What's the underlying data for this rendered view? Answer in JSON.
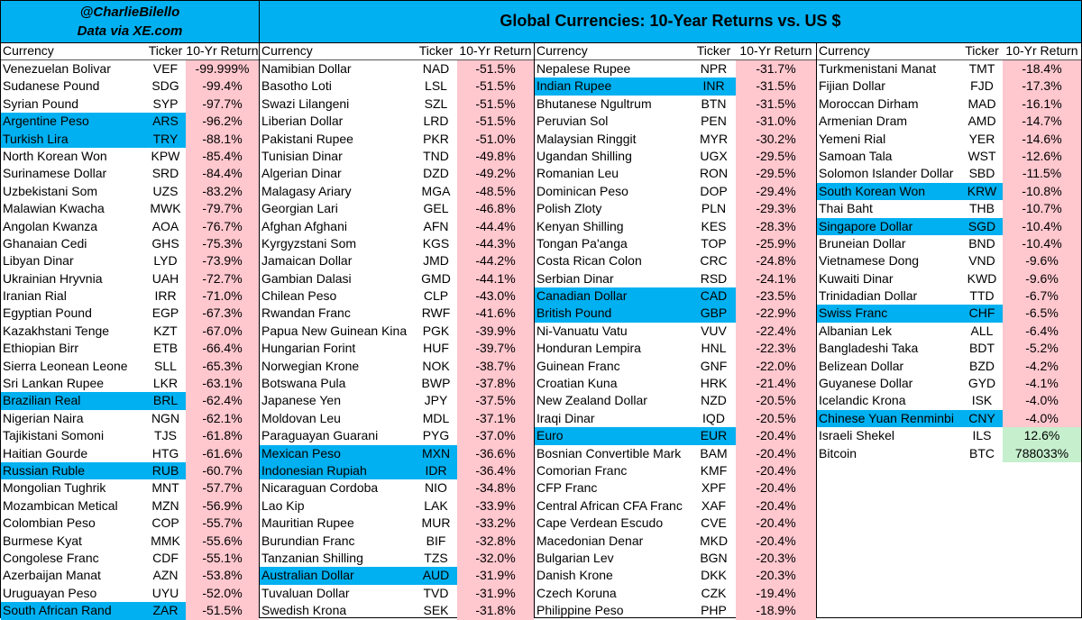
{
  "header": {
    "handle": "@CharlieBilello",
    "source": "Data via XE.com",
    "title": "Global Currencies: 10-Year Returns vs. US $"
  },
  "columns_header": {
    "currency": "Currency",
    "ticker": "Ticker",
    "return": "10-Yr Return"
  },
  "colors": {
    "highlight": "#00B0F0",
    "negative_fill": "#FFC7CE",
    "positive_fill": "#C6EFCE"
  },
  "col1": [
    {
      "name": "Venezuelan Bolivar",
      "ticker": "VEF",
      "ret": "-99.999%"
    },
    {
      "name": "Sudanese Pound",
      "ticker": "SDG",
      "ret": "-99.4%"
    },
    {
      "name": "Syrian Pound",
      "ticker": "SYP",
      "ret": "-97.7%"
    },
    {
      "name": "Argentine Peso",
      "ticker": "ARS",
      "ret": "-96.2%",
      "hl": true
    },
    {
      "name": "Turkish Lira",
      "ticker": "TRY",
      "ret": "-88.1%",
      "hl": true
    },
    {
      "name": "North Korean Won",
      "ticker": "KPW",
      "ret": "-85.4%"
    },
    {
      "name": "Surinamese Dollar",
      "ticker": "SRD",
      "ret": "-84.4%"
    },
    {
      "name": "Uzbekistani Som",
      "ticker": "UZS",
      "ret": "-83.2%"
    },
    {
      "name": "Malawian Kwacha",
      "ticker": "MWK",
      "ret": "-79.7%"
    },
    {
      "name": "Angolan Kwanza",
      "ticker": "AOA",
      "ret": "-76.7%"
    },
    {
      "name": "Ghanaian Cedi",
      "ticker": "GHS",
      "ret": "-75.3%"
    },
    {
      "name": "Libyan Dinar",
      "ticker": "LYD",
      "ret": "-73.9%"
    },
    {
      "name": "Ukrainian Hryvnia",
      "ticker": "UAH",
      "ret": "-72.7%"
    },
    {
      "name": "Iranian Rial",
      "ticker": "IRR",
      "ret": "-71.0%"
    },
    {
      "name": "Egyptian Pound",
      "ticker": "EGP",
      "ret": "-67.3%"
    },
    {
      "name": "Kazakhstani Tenge",
      "ticker": "KZT",
      "ret": "-67.0%"
    },
    {
      "name": "Ethiopian Birr",
      "ticker": "ETB",
      "ret": "-66.4%"
    },
    {
      "name": "Sierra Leonean Leone",
      "ticker": "SLL",
      "ret": "-65.3%"
    },
    {
      "name": "Sri Lankan Rupee",
      "ticker": "LKR",
      "ret": "-63.1%"
    },
    {
      "name": "Brazilian Real",
      "ticker": "BRL",
      "ret": "-62.4%",
      "hl": true
    },
    {
      "name": "Nigerian Naira",
      "ticker": "NGN",
      "ret": "-62.1%"
    },
    {
      "name": "Tajikistani Somoni",
      "ticker": "TJS",
      "ret": "-61.8%"
    },
    {
      "name": "Haitian Gourde",
      "ticker": "HTG",
      "ret": "-61.6%"
    },
    {
      "name": "Russian Ruble",
      "ticker": "RUB",
      "ret": "-60.7%",
      "hl": true
    },
    {
      "name": "Mongolian Tughrik",
      "ticker": "MNT",
      "ret": "-57.7%"
    },
    {
      "name": "Mozambican Metical",
      "ticker": "MZN",
      "ret": "-56.9%"
    },
    {
      "name": "Colombian Peso",
      "ticker": "COP",
      "ret": "-55.7%"
    },
    {
      "name": "Burmese Kyat",
      "ticker": "MMK",
      "ret": "-55.6%"
    },
    {
      "name": "Congolese Franc",
      "ticker": "CDF",
      "ret": "-55.1%"
    },
    {
      "name": "Azerbaijan Manat",
      "ticker": "AZN",
      "ret": "-53.8%"
    },
    {
      "name": "Uruguayan Peso",
      "ticker": "UYU",
      "ret": "-52.0%"
    },
    {
      "name": "South African Rand",
      "ticker": "ZAR",
      "ret": "-51.5%",
      "hl": true
    }
  ],
  "col2": [
    {
      "name": "Namibian Dollar",
      "ticker": "NAD",
      "ret": "-51.5%"
    },
    {
      "name": "Basotho Loti",
      "ticker": "LSL",
      "ret": "-51.5%"
    },
    {
      "name": "Swazi Lilangeni",
      "ticker": "SZL",
      "ret": "-51.5%"
    },
    {
      "name": "Liberian Dollar",
      "ticker": "LRD",
      "ret": "-51.5%"
    },
    {
      "name": "Pakistani Rupee",
      "ticker": "PKR",
      "ret": "-51.0%"
    },
    {
      "name": "Tunisian Dinar",
      "ticker": "TND",
      "ret": "-49.8%"
    },
    {
      "name": "Algerian Dinar",
      "ticker": "DZD",
      "ret": "-49.2%"
    },
    {
      "name": "Malagasy Ariary",
      "ticker": "MGA",
      "ret": "-48.5%"
    },
    {
      "name": "Georgian Lari",
      "ticker": "GEL",
      "ret": "-46.8%"
    },
    {
      "name": "Afghan Afghani",
      "ticker": "AFN",
      "ret": "-44.4%"
    },
    {
      "name": "Kyrgyzstani Som",
      "ticker": "KGS",
      "ret": "-44.3%"
    },
    {
      "name": "Jamaican Dollar",
      "ticker": "JMD",
      "ret": "-44.2%"
    },
    {
      "name": "Gambian Dalasi",
      "ticker": "GMD",
      "ret": "-44.1%"
    },
    {
      "name": "Chilean Peso",
      "ticker": "CLP",
      "ret": "-43.0%"
    },
    {
      "name": "Rwandan Franc",
      "ticker": "RWF",
      "ret": "-41.6%"
    },
    {
      "name": "Papua New Guinean Kina",
      "ticker": "PGK",
      "ret": "-39.9%"
    },
    {
      "name": "Hungarian Forint",
      "ticker": "HUF",
      "ret": "-39.7%"
    },
    {
      "name": "Norwegian Krone",
      "ticker": "NOK",
      "ret": "-38.7%"
    },
    {
      "name": "Botswana Pula",
      "ticker": "BWP",
      "ret": "-37.8%"
    },
    {
      "name": "Japanese Yen",
      "ticker": "JPY",
      "ret": "-37.5%"
    },
    {
      "name": "Moldovan Leu",
      "ticker": "MDL",
      "ret": "-37.1%"
    },
    {
      "name": "Paraguayan Guarani",
      "ticker": "PYG",
      "ret": "-37.0%"
    },
    {
      "name": "Mexican Peso",
      "ticker": "MXN",
      "ret": "-36.6%",
      "hl": true
    },
    {
      "name": "Indonesian Rupiah",
      "ticker": "IDR",
      "ret": "-36.4%",
      "hl": true
    },
    {
      "name": "Nicaraguan Cordoba",
      "ticker": "NIO",
      "ret": "-34.8%"
    },
    {
      "name": "Lao Kip",
      "ticker": "LAK",
      "ret": "-33.9%"
    },
    {
      "name": "Mauritian Rupee",
      "ticker": "MUR",
      "ret": "-33.2%"
    },
    {
      "name": "Burundian Franc",
      "ticker": "BIF",
      "ret": "-32.8%"
    },
    {
      "name": "Tanzanian Shilling",
      "ticker": "TZS",
      "ret": "-32.0%"
    },
    {
      "name": "Australian Dollar",
      "ticker": "AUD",
      "ret": "-31.9%",
      "hl": true
    },
    {
      "name": "Tuvaluan Dollar",
      "ticker": "TVD",
      "ret": "-31.9%"
    },
    {
      "name": "Swedish Krona",
      "ticker": "SEK",
      "ret": "-31.8%"
    }
  ],
  "col3": [
    {
      "name": "Nepalese Rupee",
      "ticker": "NPR",
      "ret": "-31.7%"
    },
    {
      "name": "Indian Rupee",
      "ticker": "INR",
      "ret": "-31.5%",
      "hl": true
    },
    {
      "name": "Bhutanese Ngultrum",
      "ticker": "BTN",
      "ret": "-31.5%"
    },
    {
      "name": "Peruvian Sol",
      "ticker": "PEN",
      "ret": "-31.0%"
    },
    {
      "name": "Malaysian Ringgit",
      "ticker": "MYR",
      "ret": "-30.2%"
    },
    {
      "name": "Ugandan Shilling",
      "ticker": "UGX",
      "ret": "-29.5%"
    },
    {
      "name": "Romanian Leu",
      "ticker": "RON",
      "ret": "-29.5%"
    },
    {
      "name": "Dominican Peso",
      "ticker": "DOP",
      "ret": "-29.4%"
    },
    {
      "name": "Polish Zloty",
      "ticker": "PLN",
      "ret": "-29.3%"
    },
    {
      "name": "Kenyan Shilling",
      "ticker": "KES",
      "ret": "-28.3%"
    },
    {
      "name": "Tongan Pa'anga",
      "ticker": "TOP",
      "ret": "-25.9%"
    },
    {
      "name": "Costa Rican Colon",
      "ticker": "CRC",
      "ret": "-24.8%"
    },
    {
      "name": "Serbian Dinar",
      "ticker": "RSD",
      "ret": "-24.1%"
    },
    {
      "name": "Canadian Dollar",
      "ticker": "CAD",
      "ret": "-23.5%",
      "hl": true
    },
    {
      "name": "British Pound",
      "ticker": "GBP",
      "ret": "-22.9%",
      "hl": true
    },
    {
      "name": "Ni-Vanuatu Vatu",
      "ticker": "VUV",
      "ret": "-22.4%"
    },
    {
      "name": "Honduran Lempira",
      "ticker": "HNL",
      "ret": "-22.3%"
    },
    {
      "name": "Guinean Franc",
      "ticker": "GNF",
      "ret": "-22.0%"
    },
    {
      "name": "Croatian Kuna",
      "ticker": "HRK",
      "ret": "-21.4%"
    },
    {
      "name": "New Zealand Dollar",
      "ticker": "NZD",
      "ret": "-20.5%"
    },
    {
      "name": "Iraqi Dinar",
      "ticker": "IQD",
      "ret": "-20.5%"
    },
    {
      "name": "Euro",
      "ticker": "EUR",
      "ret": "-20.4%",
      "hl": true
    },
    {
      "name": "Bosnian Convertible Mark",
      "ticker": "BAM",
      "ret": "-20.4%"
    },
    {
      "name": "Comorian Franc",
      "ticker": "KMF",
      "ret": "-20.4%"
    },
    {
      "name": "CFP Franc",
      "ticker": "XPF",
      "ret": "-20.4%"
    },
    {
      "name": "Central African CFA Franc",
      "ticker": "XAF",
      "ret": "-20.4%"
    },
    {
      "name": "Cape Verdean Escudo",
      "ticker": "CVE",
      "ret": "-20.4%"
    },
    {
      "name": "Macedonian Denar",
      "ticker": "MKD",
      "ret": "-20.4%"
    },
    {
      "name": "Bulgarian Lev",
      "ticker": "BGN",
      "ret": "-20.3%"
    },
    {
      "name": "Danish Krone",
      "ticker": "DKK",
      "ret": "-20.3%"
    },
    {
      "name": "Czech Koruna",
      "ticker": "CZK",
      "ret": "-19.4%"
    },
    {
      "name": "Philippine Peso",
      "ticker": "PHP",
      "ret": "-18.9%"
    }
  ],
  "col4": [
    {
      "name": "Turkmenistani Manat",
      "ticker": "TMT",
      "ret": "-18.4%"
    },
    {
      "name": "Fijian Dollar",
      "ticker": "FJD",
      "ret": "-17.3%"
    },
    {
      "name": "Moroccan Dirham",
      "ticker": "MAD",
      "ret": "-16.1%"
    },
    {
      "name": "Armenian Dram",
      "ticker": "AMD",
      "ret": "-14.7%"
    },
    {
      "name": "Yemeni Rial",
      "ticker": "YER",
      "ret": "-14.6%"
    },
    {
      "name": "Samoan Tala",
      "ticker": "WST",
      "ret": "-12.6%"
    },
    {
      "name": "Solomon Islander Dollar",
      "ticker": "SBD",
      "ret": "-11.5%"
    },
    {
      "name": "South Korean Won",
      "ticker": "KRW",
      "ret": "-10.8%",
      "hl": true
    },
    {
      "name": "Thai Baht",
      "ticker": "THB",
      "ret": "-10.7%"
    },
    {
      "name": "Singapore Dollar",
      "ticker": "SGD",
      "ret": "-10.4%",
      "hl": true
    },
    {
      "name": "Bruneian Dollar",
      "ticker": "BND",
      "ret": "-10.4%"
    },
    {
      "name": "Vietnamese Dong",
      "ticker": "VND",
      "ret": "-9.6%"
    },
    {
      "name": "Kuwaiti Dinar",
      "ticker": "KWD",
      "ret": "-9.6%"
    },
    {
      "name": "Trinidadian Dollar",
      "ticker": "TTD",
      "ret": "-6.7%"
    },
    {
      "name": "Swiss Franc",
      "ticker": "CHF",
      "ret": "-6.5%",
      "hl": true
    },
    {
      "name": "Albanian Lek",
      "ticker": "ALL",
      "ret": "-6.4%"
    },
    {
      "name": "Bangladeshi Taka",
      "ticker": "BDT",
      "ret": "-5.2%"
    },
    {
      "name": "Belizean Dollar",
      "ticker": "BZD",
      "ret": "-4.2%"
    },
    {
      "name": "Guyanese Dollar",
      "ticker": "GYD",
      "ret": "-4.1%"
    },
    {
      "name": "Icelandic Krona",
      "ticker": "ISK",
      "ret": "-4.0%"
    },
    {
      "name": "Chinese Yuan Renminbi",
      "ticker": "CNY",
      "ret": "-4.0%",
      "hl": true
    },
    {
      "name": "Israeli Shekel",
      "ticker": "ILS",
      "ret": "12.6%",
      "pos": true
    },
    {
      "name": "Bitcoin",
      "ticker": "BTC",
      "ret": "788033%",
      "pos": true
    }
  ]
}
